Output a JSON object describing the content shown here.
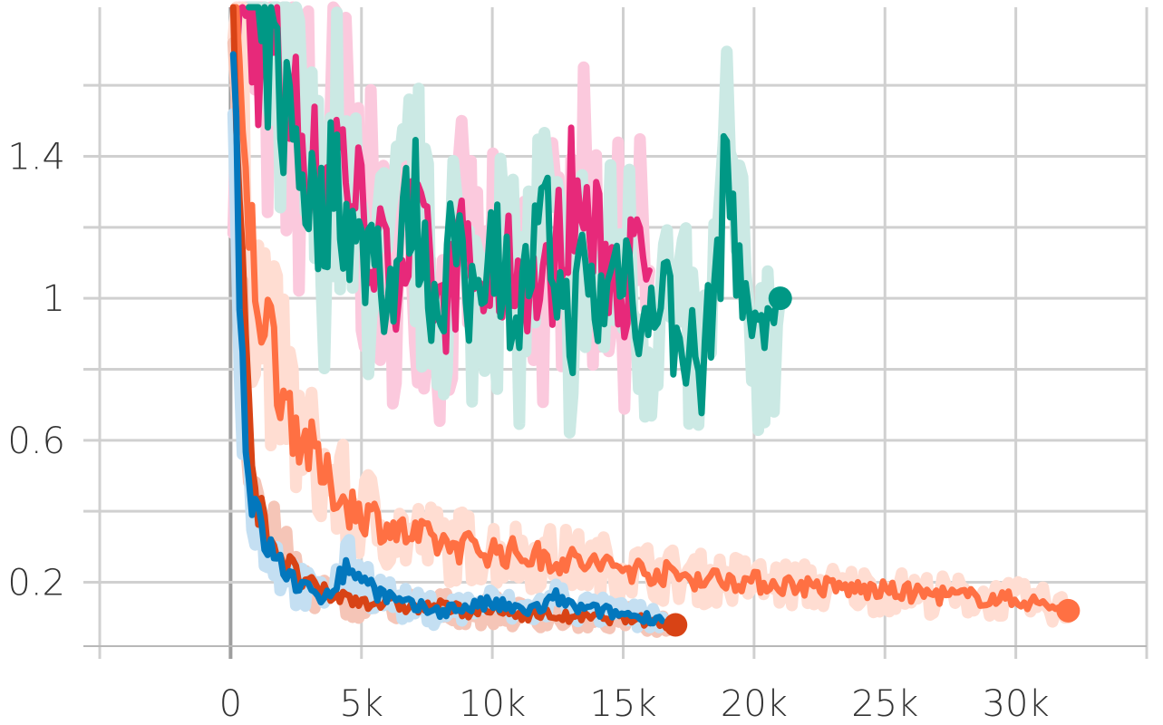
{
  "chart_data": {
    "type": "line",
    "title": "",
    "xlabel": "",
    "ylabel": "",
    "xlim": [
      -5000,
      35000
    ],
    "ylim": [
      0.02,
      1.82
    ],
    "grid": true,
    "x_ticks": [
      {
        "value": 0,
        "label": "0"
      },
      {
        "value": 5000,
        "label": "5k"
      },
      {
        "value": 10000,
        "label": "10k"
      },
      {
        "value": 15000,
        "label": "15k"
      },
      {
        "value": 20000,
        "label": "20k"
      },
      {
        "value": 25000,
        "label": "25k"
      },
      {
        "value": 30000,
        "label": "30k"
      }
    ],
    "y_ticks": [
      {
        "value": 0.2,
        "label": "0.2"
      },
      {
        "value": 0.6,
        "label": "0.6"
      },
      {
        "value": 1.0,
        "label": "1"
      },
      {
        "value": 1.4,
        "label": "1.4"
      }
    ],
    "y_minor_gridlines": [
      0.4,
      0.8,
      1.2,
      1.6
    ],
    "series": [
      {
        "color": "#e7297a",
        "raw_color": "#fbc9dd",
        "end_marker": false,
        "points": [
          [
            100,
            1.82
          ],
          [
            300,
            1.8
          ],
          [
            700,
            1.76
          ],
          [
            1200,
            1.72
          ],
          [
            2000,
            1.6
          ],
          [
            2500,
            1.5
          ],
          [
            3000,
            1.4
          ],
          [
            3500,
            1.3
          ],
          [
            4000,
            1.45
          ],
          [
            4500,
            1.35
          ],
          [
            5000,
            1.25
          ],
          [
            5500,
            1.15
          ],
          [
            6000,
            1.05
          ],
          [
            6500,
            1.1
          ],
          [
            7000,
            1.2
          ],
          [
            7500,
            1.1
          ],
          [
            8000,
            0.95
          ],
          [
            8500,
            1.05
          ],
          [
            9000,
            1.15
          ],
          [
            9500,
            1.0
          ],
          [
            10000,
            1.05
          ],
          [
            11000,
            1.1
          ],
          [
            12000,
            1.0
          ],
          [
            12500,
            1.15
          ],
          [
            13000,
            1.3
          ],
          [
            14000,
            1.15
          ],
          [
            15000,
            1.05
          ],
          [
            15500,
            1.1
          ],
          [
            16000,
            1.08
          ]
        ]
      },
      {
        "color": "#009885",
        "raw_color": "#cbe9e4",
        "end_marker": true,
        "points": [
          [
            700,
            1.82
          ],
          [
            1000,
            1.75
          ],
          [
            1500,
            1.7
          ],
          [
            2000,
            1.55
          ],
          [
            2500,
            1.45
          ],
          [
            3000,
            1.3
          ],
          [
            3500,
            1.2
          ],
          [
            4000,
            1.4
          ],
          [
            4500,
            1.2
          ],
          [
            5000,
            1.1
          ],
          [
            5500,
            1.2
          ],
          [
            6000,
            1.0
          ],
          [
            6500,
            1.15
          ],
          [
            7000,
            1.3
          ],
          [
            7500,
            1.05
          ],
          [
            8000,
            1.0
          ],
          [
            8500,
            1.2
          ],
          [
            9000,
            0.95
          ],
          [
            9500,
            1.1
          ],
          [
            10000,
            1.2
          ],
          [
            10500,
            1.05
          ],
          [
            11000,
            0.95
          ],
          [
            11500,
            1.1
          ],
          [
            12000,
            1.2
          ],
          [
            12500,
            1.05
          ],
          [
            13000,
            0.9
          ],
          [
            13500,
            1.1
          ],
          [
            14000,
            0.95
          ],
          [
            14500,
            1.05
          ],
          [
            15000,
            1.15
          ],
          [
            15500,
            1.0
          ],
          [
            16000,
            0.9
          ],
          [
            16500,
            1.1
          ],
          [
            17000,
            0.85
          ],
          [
            17500,
            0.9
          ],
          [
            18000,
            0.75
          ],
          [
            18300,
            0.95
          ],
          [
            18700,
            1.15
          ],
          [
            19000,
            1.4
          ],
          [
            19300,
            1.2
          ],
          [
            19700,
            0.9
          ],
          [
            20000,
            1.0
          ],
          [
            20300,
            0.85
          ],
          [
            20600,
            1.05
          ],
          [
            20800,
            0.95
          ],
          [
            21000,
            1.0
          ]
        ]
      },
      {
        "color": "#ff7043",
        "raw_color": "#ffddd2",
        "end_marker": true,
        "points": [
          [
            100,
            1.82
          ],
          [
            250,
            1.6
          ],
          [
            400,
            1.45
          ],
          [
            600,
            1.3
          ],
          [
            800,
            1.15
          ],
          [
            1000,
            1.05
          ],
          [
            1200,
            0.98
          ],
          [
            1500,
            0.9
          ],
          [
            1800,
            0.8
          ],
          [
            2200,
            0.7
          ],
          [
            2600,
            0.62
          ],
          [
            3000,
            0.58
          ],
          [
            3500,
            0.5
          ],
          [
            4000,
            0.46
          ],
          [
            4500,
            0.42
          ],
          [
            5000,
            0.4
          ],
          [
            5500,
            0.38
          ],
          [
            6000,
            0.36
          ],
          [
            6500,
            0.34
          ],
          [
            7000,
            0.33
          ],
          [
            7500,
            0.32
          ],
          [
            8000,
            0.31
          ],
          [
            9000,
            0.3
          ],
          [
            10000,
            0.29
          ],
          [
            11000,
            0.28
          ],
          [
            12000,
            0.27
          ],
          [
            13000,
            0.26
          ],
          [
            14000,
            0.25
          ],
          [
            15000,
            0.24
          ],
          [
            16000,
            0.23
          ],
          [
            17000,
            0.22
          ],
          [
            18000,
            0.21
          ],
          [
            19000,
            0.21
          ],
          [
            20000,
            0.2
          ],
          [
            22000,
            0.19
          ],
          [
            24000,
            0.18
          ],
          [
            26000,
            0.17
          ],
          [
            28000,
            0.16
          ],
          [
            30000,
            0.15
          ],
          [
            31000,
            0.14
          ],
          [
            32000,
            0.12
          ]
        ]
      },
      {
        "color": "#d84315",
        "raw_color": "#f5c5b7",
        "end_marker": true,
        "points": [
          [
            100,
            1.82
          ],
          [
            250,
            1.5
          ],
          [
            400,
            1.2
          ],
          [
            500,
            0.95
          ],
          [
            600,
            0.78
          ],
          [
            700,
            0.64
          ],
          [
            800,
            0.52
          ],
          [
            1000,
            0.45
          ],
          [
            1200,
            0.38
          ],
          [
            1500,
            0.33
          ],
          [
            2000,
            0.27
          ],
          [
            2500,
            0.22
          ],
          [
            3000,
            0.19
          ],
          [
            3500,
            0.17
          ],
          [
            4000,
            0.16
          ],
          [
            5000,
            0.15
          ],
          [
            6000,
            0.14
          ],
          [
            7000,
            0.13
          ],
          [
            8000,
            0.13
          ],
          [
            9000,
            0.12
          ],
          [
            10000,
            0.12
          ],
          [
            11000,
            0.11
          ],
          [
            12000,
            0.11
          ],
          [
            13000,
            0.1
          ],
          [
            14000,
            0.1
          ],
          [
            15000,
            0.1
          ],
          [
            16000,
            0.09
          ],
          [
            17000,
            0.08
          ]
        ]
      },
      {
        "color": "#0277bd",
        "raw_color": "#c4dff2",
        "end_marker": false,
        "points": [
          [
            100,
            1.82
          ],
          [
            200,
            1.5
          ],
          [
            300,
            1.2
          ],
          [
            400,
            0.95
          ],
          [
            500,
            0.75
          ],
          [
            600,
            0.6
          ],
          [
            700,
            0.5
          ],
          [
            800,
            0.45
          ],
          [
            1000,
            0.38
          ],
          [
            1300,
            0.32
          ],
          [
            1700,
            0.27
          ],
          [
            2000,
            0.24
          ],
          [
            2500,
            0.2
          ],
          [
            3000,
            0.17
          ],
          [
            3500,
            0.16
          ],
          [
            4000,
            0.2
          ],
          [
            4500,
            0.24
          ],
          [
            5000,
            0.22
          ],
          [
            5500,
            0.18
          ],
          [
            6000,
            0.16
          ],
          [
            6500,
            0.14
          ],
          [
            7000,
            0.13
          ],
          [
            8000,
            0.12
          ],
          [
            9000,
            0.13
          ],
          [
            10000,
            0.14
          ],
          [
            11000,
            0.12
          ],
          [
            12000,
            0.13
          ],
          [
            12500,
            0.16
          ],
          [
            13000,
            0.13
          ],
          [
            14000,
            0.12
          ],
          [
            15000,
            0.11
          ],
          [
            16000,
            0.1
          ],
          [
            16500,
            0.1
          ]
        ]
      }
    ]
  }
}
